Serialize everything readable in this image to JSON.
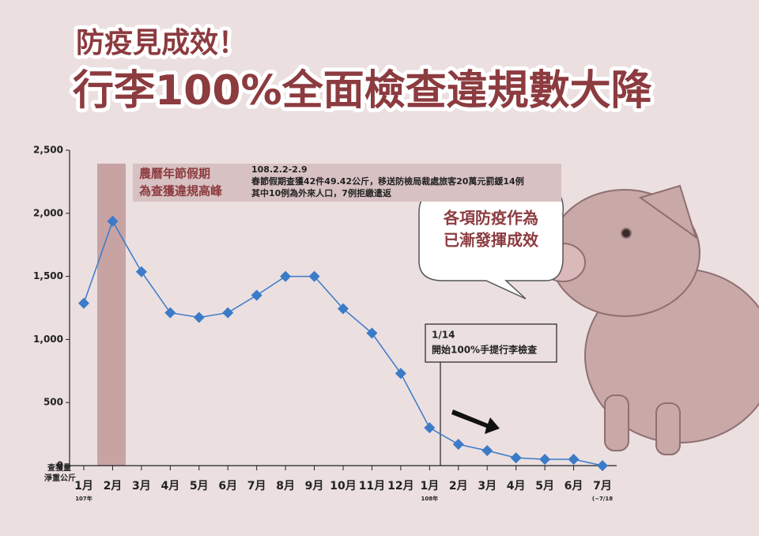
{
  "chart_data": {
    "type": "line",
    "title": "防疫見成效！",
    "subtitle": "行李100%全面檢查違規數大降",
    "y_label": [
      "查獲量",
      "淨重公斤"
    ],
    "categories": [
      "1月",
      "2月",
      "3月",
      "4月",
      "5月",
      "6月",
      "7月",
      "8月",
      "9月",
      "10月",
      "11月",
      "12月",
      "1月",
      "2月",
      "3月",
      "4月",
      "5月",
      "6月",
      "7月"
    ],
    "category_notes": [
      "107年",
      null,
      null,
      null,
      null,
      null,
      null,
      null,
      null,
      null,
      null,
      null,
      "108年",
      null,
      null,
      null,
      null,
      null,
      "(~7/18"
    ],
    "series": [
      {
        "name": "查獲量",
        "color": "#3b7bc8",
        "values": [
          1287,
          1937,
          1537,
          1212,
          1175,
          1212,
          1350,
          1500,
          1500,
          1244,
          1050,
          731,
          300,
          169,
          119,
          62,
          50,
          50,
          0
        ]
      }
    ],
    "ylim": [
      0,
      2500
    ],
    "yticks": [
      0,
      500,
      {
        "value": 1000,
        "label": "1,000"
      },
      {
        "value": 1500,
        "label": "1,500"
      },
      {
        "value": 2000,
        "label": "2,000"
      },
      {
        "value": 2500,
        "label": "2,500"
      }
    ],
    "annotations": {
      "peak_title": [
        "農曆年節假期",
        "為查獲違規高峰"
      ],
      "peak_detail": [
        "108.2.2-2.9",
        "春節假期查獲42件49.42公斤，移送防檢局裁處旅客20萬元罰鍰14例",
        "其中10例為外來人口，7例拒繳遣返"
      ],
      "policy": [
        "1/14",
        "開始100%手提行李檢查"
      ],
      "bubble": [
        "各項防疫作為",
        "已漸發揮成效"
      ]
    }
  }
}
